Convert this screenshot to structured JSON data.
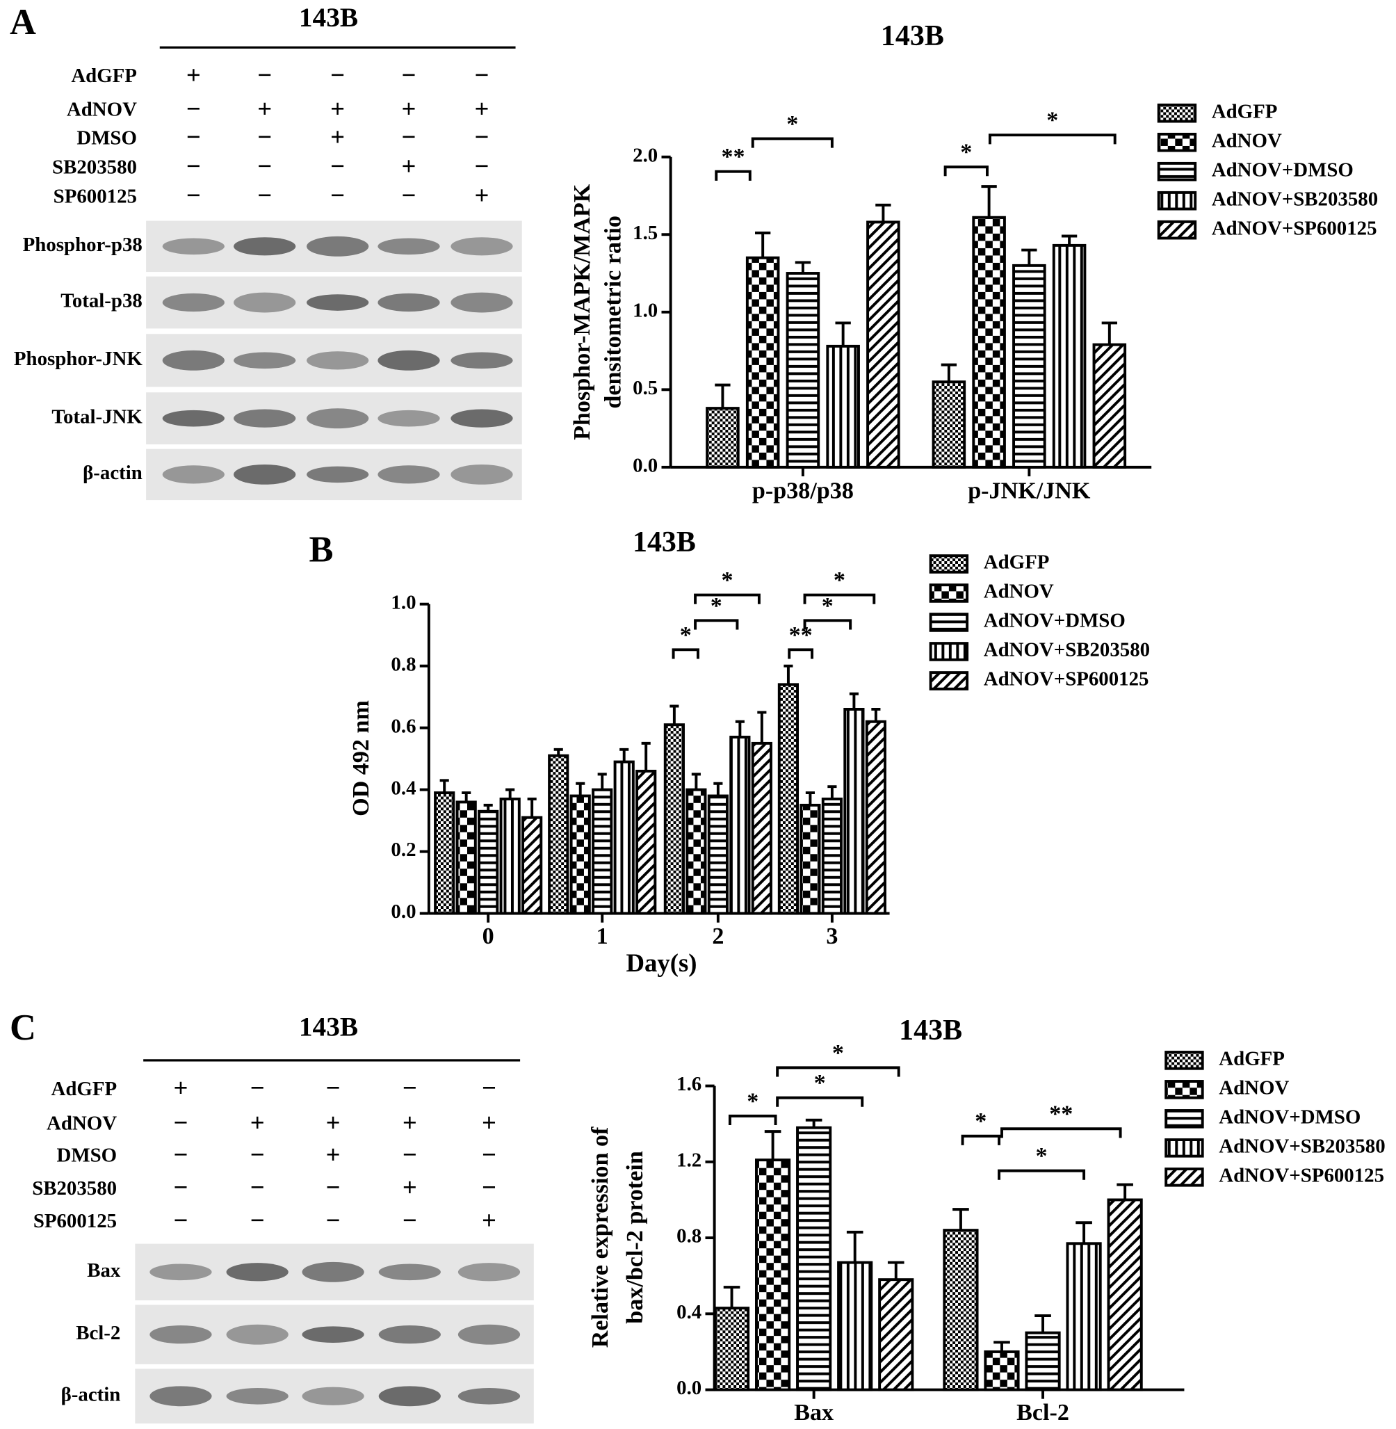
{
  "panels": [
    "A",
    "B",
    "C"
  ],
  "blots": [
    {
      "title": "143B",
      "treatments": [
        {
          "label": "AdGFP",
          "signs": [
            "+",
            "−",
            "−",
            "−",
            "−"
          ]
        },
        {
          "label": "AdNOV",
          "signs": [
            "−",
            "+",
            "+",
            "+",
            "+"
          ]
        },
        {
          "label": "DMSO",
          "signs": [
            "−",
            "−",
            "+",
            "−",
            "−"
          ]
        },
        {
          "label": "SB203580",
          "signs": [
            "−",
            "−",
            "−",
            "+",
            "−"
          ]
        },
        {
          "label": "SP600125",
          "signs": [
            "−",
            "−",
            "−",
            "−",
            "+"
          ]
        }
      ],
      "bands": [
        "Phosphor-p38",
        "Total-p38",
        "Phosphor-JNK",
        "Total-JNK",
        "β-actin"
      ]
    },
    {
      "title": "143B",
      "treatments": [
        {
          "label": "AdGFP",
          "signs": [
            "+",
            "−",
            "−",
            "−",
            "−"
          ]
        },
        {
          "label": "AdNOV",
          "signs": [
            "−",
            "+",
            "+",
            "+",
            "+"
          ]
        },
        {
          "label": "DMSO",
          "signs": [
            "−",
            "−",
            "+",
            "−",
            "−"
          ]
        },
        {
          "label": "SB203580",
          "signs": [
            "−",
            "−",
            "−",
            "+",
            "−"
          ]
        },
        {
          "label": "SP600125",
          "signs": [
            "−",
            "−",
            "−",
            "−",
            "+"
          ]
        }
      ],
      "bands": [
        "Bax",
        "Bcl-2",
        "β-actin"
      ]
    }
  ],
  "chart_data": [
    {
      "type": "bar",
      "title": "143B",
      "ylabel": [
        "Phosphor-MAPK/MAPK",
        "densitometric ratio"
      ],
      "categories": [
        "p-p38/p38",
        "p-JNK/JNK"
      ],
      "series": [
        {
          "name": "AdGFP",
          "color": "#000000",
          "pattern": "dots",
          "values": [
            0.38,
            0.55
          ],
          "errors": [
            0.15,
            0.11
          ]
        },
        {
          "name": "AdNOV",
          "color": "#000000",
          "pattern": "checker",
          "values": [
            1.35,
            1.61
          ],
          "errors": [
            0.16,
            0.2
          ]
        },
        {
          "name": "AdNOV+DMSO",
          "color": "#000000",
          "pattern": "hlines",
          "values": [
            1.25,
            1.3
          ],
          "errors": [
            0.07,
            0.1
          ]
        },
        {
          "name": "AdNOV+SB203580",
          "color": "#000000",
          "pattern": "vlines",
          "values": [
            0.78,
            1.43
          ],
          "errors": [
            0.15,
            0.06
          ]
        },
        {
          "name": "AdNOV+SP600125",
          "color": "#000000",
          "pattern": "diag",
          "values": [
            1.58,
            0.79
          ],
          "errors": [
            0.11,
            0.14
          ]
        }
      ],
      "ylim": [
        0,
        2.0
      ],
      "yticks": [
        {
          "value": 0,
          "label": "0.0"
        },
        0.5,
        {
          "value": 1,
          "label": "1.0"
        },
        1.5,
        {
          "value": 2,
          "label": "2.0"
        }
      ],
      "annotations": [
        "**",
        "*",
        "*",
        "*"
      ],
      "legend": "upper right"
    },
    {
      "type": "bar",
      "title": "143B",
      "ylabel": [
        "OD 492 nm"
      ],
      "xlabel": "Day(s)",
      "categories": [
        "0",
        "1",
        "2",
        "3"
      ],
      "series": [
        {
          "name": "AdGFP",
          "color": "#000000",
          "pattern": "dots",
          "values": [
            0.39,
            0.51,
            0.61,
            0.74
          ],
          "errors": [
            0.04,
            0.02,
            0.06,
            0.06
          ]
        },
        {
          "name": "AdNOV",
          "color": "#000000",
          "pattern": "checker",
          "values": [
            0.36,
            0.38,
            0.4,
            0.35
          ],
          "errors": [
            0.03,
            0.04,
            0.05,
            0.04
          ]
        },
        {
          "name": "AdNOV+DMSO",
          "color": "#000000",
          "pattern": "hlines",
          "values": [
            0.33,
            0.4,
            0.38,
            0.37
          ],
          "errors": [
            0.02,
            0.05,
            0.04,
            0.04
          ]
        },
        {
          "name": "AdNOV+SB203580",
          "color": "#000000",
          "pattern": "vlines",
          "values": [
            0.37,
            0.49,
            0.57,
            0.66
          ],
          "errors": [
            0.03,
            0.04,
            0.05,
            0.05
          ]
        },
        {
          "name": "AdNOV+SP600125",
          "color": "#000000",
          "pattern": "diag",
          "values": [
            0.31,
            0.46,
            0.55,
            0.62
          ],
          "errors": [
            0.06,
            0.09,
            0.1,
            0.04
          ]
        }
      ],
      "ylim": [
        0,
        1.0
      ],
      "yticks": [
        {
          "value": 0,
          "label": "0.0"
        },
        0.2,
        0.4,
        0.6,
        0.8,
        {
          "value": 1,
          "label": "1.0"
        }
      ],
      "annotations": [
        "*",
        "*",
        "*",
        "**",
        "*",
        "*"
      ],
      "legend": "upper right"
    },
    {
      "type": "bar",
      "title": "143B",
      "ylabel": [
        "Relative expression of",
        "bax/bcl-2 protein"
      ],
      "categories": [
        "Bax",
        "Bcl-2"
      ],
      "series": [
        {
          "name": "AdGFP",
          "color": "#000000",
          "pattern": "dots",
          "values": [
            0.43,
            0.84
          ],
          "errors": [
            0.11,
            0.11
          ]
        },
        {
          "name": "AdNOV",
          "color": "#000000",
          "pattern": "checker",
          "values": [
            1.21,
            0.2
          ],
          "errors": [
            0.15,
            0.05
          ]
        },
        {
          "name": "AdNOV+DMSO",
          "color": "#000000",
          "pattern": "hlines",
          "values": [
            1.38,
            0.3
          ],
          "errors": [
            0.04,
            0.09
          ]
        },
        {
          "name": "AdNOV+SB203580",
          "color": "#000000",
          "pattern": "vlines",
          "values": [
            0.67,
            0.77
          ],
          "errors": [
            0.16,
            0.11
          ]
        },
        {
          "name": "AdNOV+SP600125",
          "color": "#000000",
          "pattern": "diag",
          "values": [
            0.58,
            1.0
          ],
          "errors": [
            0.09,
            0.08
          ]
        }
      ],
      "ylim": [
        0,
        1.6
      ],
      "yticks": [
        {
          "value": 0,
          "label": "0.0"
        },
        0.4,
        0.8,
        1.2,
        1.6
      ],
      "annotations": [
        "*",
        "*",
        "*",
        "*",
        "*",
        "**"
      ],
      "legend": "upper right"
    }
  ]
}
